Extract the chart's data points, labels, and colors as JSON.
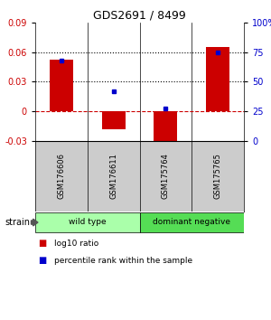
{
  "title": "GDS2691 / 8499",
  "samples": [
    "GSM176606",
    "GSM176611",
    "GSM175764",
    "GSM175765"
  ],
  "log10_ratios": [
    0.052,
    -0.018,
    -0.033,
    0.065
  ],
  "percentile_ranks": [
    68,
    42,
    27,
    75
  ],
  "groups": [
    {
      "label": "wild type",
      "samples": [
        0,
        1
      ],
      "color": "#aaffaa"
    },
    {
      "label": "dominant negative",
      "samples": [
        2,
        3
      ],
      "color": "#55dd55"
    }
  ],
  "ylim_left": [
    -0.03,
    0.09
  ],
  "ylim_right": [
    0,
    100
  ],
  "yticks_left": [
    -0.03,
    0,
    0.03,
    0.06,
    0.09
  ],
  "yticks_right": [
    0,
    25,
    50,
    75,
    100
  ],
  "hlines": [
    0.03,
    0.06
  ],
  "left_color": "#cc0000",
  "right_color": "#0000cc",
  "bar_color": "#cc0000",
  "dot_color": "#0000cc",
  "zero_line_color": "#cc0000",
  "background_color": "#ffffff",
  "sample_label_bg": "#cccccc",
  "legend_items": [
    {
      "label": "log10 ratio",
      "color": "#cc0000"
    },
    {
      "label": "percentile rank within the sample",
      "color": "#0000cc"
    }
  ]
}
